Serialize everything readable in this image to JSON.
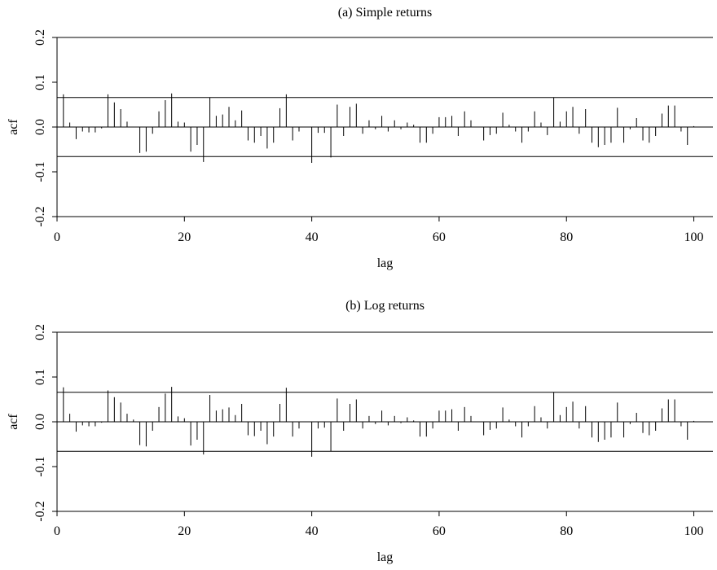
{
  "chart_data": [
    {
      "type": "bar",
      "title": "(a) Simple returns",
      "xlabel": "lag",
      "ylabel": "acf",
      "xlim": [
        0,
        103
      ],
      "ylim": [
        -0.2,
        0.2
      ],
      "x_ticks": [
        0,
        20,
        40,
        60,
        80,
        100
      ],
      "x_tick_labels": [
        "0",
        "20",
        "40",
        "60",
        "80",
        "100"
      ],
      "y_ticks": [
        -0.2,
        -0.1,
        0.0,
        0.1,
        0.2
      ],
      "y_tick_labels": [
        "-0.2",
        "-0.1",
        "0.0",
        "0.1",
        "0.2"
      ],
      "confidence_band": [
        -0.066,
        0.066
      ],
      "grid": false,
      "x": [
        1,
        2,
        3,
        4,
        5,
        6,
        7,
        8,
        9,
        10,
        11,
        12,
        13,
        14,
        15,
        16,
        17,
        18,
        19,
        20,
        21,
        22,
        23,
        24,
        25,
        26,
        27,
        28,
        29,
        30,
        31,
        32,
        33,
        34,
        35,
        36,
        37,
        38,
        39,
        40,
        41,
        42,
        43,
        44,
        45,
        46,
        47,
        48,
        49,
        50,
        51,
        52,
        53,
        54,
        55,
        56,
        57,
        58,
        59,
        60,
        61,
        62,
        63,
        64,
        65,
        66,
        67,
        68,
        69,
        70,
        71,
        72,
        73,
        74,
        75,
        76,
        77,
        78,
        79,
        80,
        81,
        82,
        83,
        84,
        85,
        86,
        87,
        88,
        89,
        90,
        91,
        92,
        93,
        94,
        95,
        96,
        97,
        98,
        99,
        100
      ],
      "values": [
        0.073,
        0.01,
        -0.027,
        -0.01,
        -0.012,
        -0.012,
        -0.003,
        0.073,
        0.055,
        0.04,
        0.012,
        0.0,
        -0.058,
        -0.055,
        -0.015,
        0.035,
        0.06,
        0.075,
        0.012,
        0.01,
        -0.055,
        -0.04,
        -0.078,
        0.066,
        0.025,
        0.028,
        0.045,
        0.015,
        0.037,
        -0.03,
        -0.035,
        -0.02,
        -0.048,
        -0.035,
        0.042,
        0.073,
        -0.03,
        -0.01,
        0.0,
        -0.08,
        -0.013,
        -0.013,
        -0.068,
        0.05,
        -0.02,
        0.045,
        0.052,
        -0.015,
        0.015,
        -0.005,
        0.025,
        -0.01,
        0.015,
        -0.005,
        0.01,
        0.005,
        -0.035,
        -0.035,
        -0.015,
        0.022,
        0.022,
        0.025,
        -0.02,
        0.035,
        0.015,
        0.0,
        -0.03,
        -0.018,
        -0.015,
        0.032,
        0.005,
        -0.01,
        -0.035,
        -0.01,
        0.035,
        0.01,
        -0.018,
        0.066,
        0.012,
        0.035,
        0.045,
        -0.015,
        0.04,
        -0.035,
        -0.045,
        -0.04,
        -0.035,
        0.043,
        -0.035,
        -0.005,
        0.02,
        -0.03,
        -0.035,
        -0.02,
        0.03,
        0.048,
        0.048,
        -0.01,
        -0.04,
        0.002
      ]
    },
    {
      "type": "bar",
      "title": "(b) Log returns",
      "xlabel": "lag",
      "ylabel": "acf",
      "xlim": [
        0,
        103
      ],
      "ylim": [
        -0.2,
        0.2
      ],
      "x_ticks": [
        0,
        20,
        40,
        60,
        80,
        100
      ],
      "x_tick_labels": [
        "0",
        "20",
        "40",
        "60",
        "80",
        "100"
      ],
      "y_ticks": [
        -0.2,
        -0.1,
        0.0,
        0.1,
        0.2
      ],
      "y_tick_labels": [
        "-0.2",
        "-0.1",
        "0.0",
        "0.1",
        "0.2"
      ],
      "confidence_band": [
        -0.066,
        0.066
      ],
      "grid": false,
      "x": [
        1,
        2,
        3,
        4,
        5,
        6,
        7,
        8,
        9,
        10,
        11,
        12,
        13,
        14,
        15,
        16,
        17,
        18,
        19,
        20,
        21,
        22,
        23,
        24,
        25,
        26,
        27,
        28,
        29,
        30,
        31,
        32,
        33,
        34,
        35,
        36,
        37,
        38,
        39,
        40,
        41,
        42,
        43,
        44,
        45,
        46,
        47,
        48,
        49,
        50,
        51,
        52,
        53,
        54,
        55,
        56,
        57,
        58,
        59,
        60,
        61,
        62,
        63,
        64,
        65,
        66,
        67,
        68,
        69,
        70,
        71,
        72,
        73,
        74,
        75,
        76,
        77,
        78,
        79,
        80,
        81,
        82,
        83,
        84,
        85,
        86,
        87,
        88,
        89,
        90,
        91,
        92,
        93,
        94,
        95,
        96,
        97,
        98,
        99,
        100
      ],
      "values": [
        0.077,
        0.018,
        -0.022,
        -0.008,
        -0.01,
        -0.01,
        -0.002,
        0.07,
        0.055,
        0.043,
        0.018,
        0.005,
        -0.052,
        -0.055,
        -0.02,
        0.033,
        0.063,
        0.078,
        0.012,
        0.008,
        -0.053,
        -0.04,
        -0.073,
        0.06,
        0.025,
        0.028,
        0.032,
        0.015,
        0.04,
        -0.03,
        -0.032,
        -0.02,
        -0.05,
        -0.033,
        0.04,
        0.076,
        -0.033,
        -0.015,
        0.0,
        -0.078,
        -0.015,
        -0.013,
        -0.066,
        0.052,
        -0.02,
        0.04,
        0.05,
        -0.015,
        0.013,
        -0.005,
        0.025,
        -0.008,
        0.013,
        -0.003,
        0.01,
        0.003,
        -0.033,
        -0.033,
        -0.015,
        0.025,
        0.025,
        0.028,
        -0.02,
        0.033,
        0.013,
        0.0,
        -0.03,
        -0.018,
        -0.015,
        0.032,
        0.005,
        -0.01,
        -0.035,
        -0.01,
        0.035,
        0.01,
        -0.015,
        0.066,
        0.015,
        0.033,
        0.045,
        -0.015,
        0.035,
        -0.035,
        -0.045,
        -0.04,
        -0.035,
        0.043,
        -0.035,
        -0.005,
        0.02,
        -0.025,
        -0.03,
        -0.02,
        0.03,
        0.05,
        0.05,
        -0.01,
        -0.04,
        0.002
      ]
    }
  ]
}
